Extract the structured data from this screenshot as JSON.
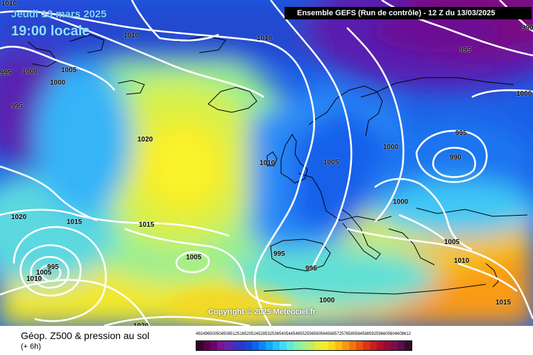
{
  "header": {
    "date_line": "Jeudi 13 mars 2025",
    "time_line": "19:00 locale",
    "run_info": "Ensemble GEFS  (Run de contrôle)  - 12 Z du 13/03/2025"
  },
  "copyright": "Copyright © 2025 Meteociel.fr",
  "footer": {
    "title": "Géop. Z500 & pression au sol",
    "subtitle": "(+ 6h)"
  },
  "map": {
    "isobar_color": "#ffffff",
    "isobar_labels": [
      {
        "id": "isobar-1010-tl",
        "text": "1010"
      },
      {
        "id": "isobar-1010-north-a",
        "text": "1010"
      },
      {
        "id": "isobar-1010-north-b",
        "text": "1010"
      },
      {
        "id": "isobar-1005-west",
        "text": "1005"
      },
      {
        "id": "isobar-1000-west-a",
        "text": "1000"
      },
      {
        "id": "isobar-1000-west-b",
        "text": "1000"
      },
      {
        "id": "isobar-995-edge",
        "text": "995"
      },
      {
        "id": "isobar-995-west",
        "text": "995"
      },
      {
        "id": "isobar-1020-atlantic",
        "text": "1020"
      },
      {
        "id": "isobar-1010-ireland",
        "text": "1010"
      },
      {
        "id": "isobar-1005-north-sea",
        "text": "1005"
      },
      {
        "id": "isobar-1000-scandinavia",
        "text": "1000"
      },
      {
        "id": "isobar-995-baltic",
        "text": "995"
      },
      {
        "id": "isobar-990-baltic",
        "text": "990"
      },
      {
        "id": "isobar-990-ne",
        "text": "990"
      },
      {
        "id": "isobar-995-ne",
        "text": "995"
      },
      {
        "id": "isobar-1000-east",
        "text": "1000"
      },
      {
        "id": "isobar-1000-central",
        "text": "1000"
      },
      {
        "id": "isobar-1020-azores",
        "text": "1020"
      },
      {
        "id": "isobar-1015-atl-a",
        "text": "1015"
      },
      {
        "id": "isobar-1015-atl-b",
        "text": "1015"
      },
      {
        "id": "isobar-1005-low",
        "text": "1005"
      },
      {
        "id": "isobar-995-low",
        "text": "995"
      },
      {
        "id": "isobar-1010-low",
        "text": "1010"
      },
      {
        "id": "isobar-1005-sw",
        "text": "1005"
      },
      {
        "id": "isobar-995-iberia",
        "text": "995"
      },
      {
        "id": "isobar-995-med",
        "text": "995"
      },
      {
        "id": "isobar-1005-balkans",
        "text": "1005"
      },
      {
        "id": "isobar-1010-greece",
        "text": "1010"
      },
      {
        "id": "isobar-1000-africa",
        "text": "1000"
      },
      {
        "id": "isobar-1015-east-med",
        "text": "1015"
      },
      {
        "id": "isobar-1020-south",
        "text": "1020"
      }
    ]
  },
  "legend": {
    "levels": [
      "492",
      "496",
      "500",
      "504",
      "508",
      "512",
      "516",
      "520",
      "524",
      "528",
      "532",
      "536",
      "540",
      "544",
      "548",
      "552",
      "556",
      "560",
      "564",
      "568",
      "572",
      "576",
      "580",
      "584",
      "588",
      "592",
      "596",
      "600",
      "604",
      "608",
      "612"
    ],
    "colors": [
      "#3a0030",
      "#55004a",
      "#6e0070",
      "#7e1292",
      "#6a22a8",
      "#4a2cc0",
      "#2838cc",
      "#1448dc",
      "#0a64ee",
      "#0a86f8",
      "#10a8fc",
      "#22c4fa",
      "#3cdcf4",
      "#5eead6",
      "#80f0b4",
      "#a2f08c",
      "#c2ec62",
      "#e0f040",
      "#f4ee28",
      "#fcd818",
      "#fcba12",
      "#fa9810",
      "#f4760e",
      "#ea540c",
      "#dc3414",
      "#cc1c1e",
      "#b40c2a",
      "#98083a",
      "#7a0c4c",
      "#5c0c48",
      "#340c2c"
    ]
  }
}
